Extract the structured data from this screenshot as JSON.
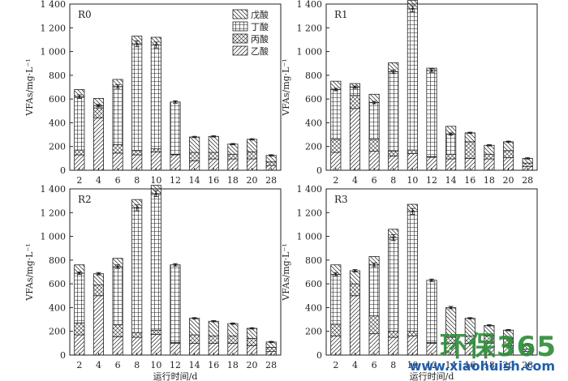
{
  "legend": {
    "items": [
      "戊酸",
      "丁酸",
      "丙酸",
      "乙酸"
    ]
  },
  "watermark": {
    "main": "环保365",
    "sub": "www.xiaohuish.com"
  },
  "colors": {
    "axis": "#222222",
    "bar_fill": "#ffffff",
    "bar_stroke": "#222222"
  },
  "chart_data": [
    {
      "type": "bar",
      "stacked": true,
      "label": "R0",
      "xlabel": "",
      "ylabel": "VFAs/mg·L⁻¹",
      "ylim": [
        0,
        1400
      ],
      "yticks": [
        "0",
        "200",
        "400",
        "600",
        "800",
        "1 000",
        "1 200",
        "1 400"
      ],
      "categories": [
        "2",
        "4",
        "6",
        "8",
        "10",
        "12",
        "14",
        "16",
        "18",
        "20",
        "28"
      ],
      "legend_position": "top-right",
      "series": [
        {
          "name": "乙酸",
          "pattern": "diag",
          "values": [
            130,
            440,
            145,
            130,
            155,
            130,
            80,
            95,
            95,
            95,
            40
          ]
        },
        {
          "name": "丙酸",
          "pattern": "cross",
          "values": [
            40,
            85,
            70,
            35,
            25,
            5,
            70,
            55,
            40,
            60,
            30
          ]
        },
        {
          "name": "丁酸",
          "pattern": "grid",
          "values": [
            450,
            20,
            490,
            900,
            875,
            440,
            0,
            0,
            0,
            0,
            0
          ]
        },
        {
          "name": "戊酸",
          "pattern": "back",
          "values": [
            60,
            60,
            60,
            65,
            65,
            0,
            130,
            135,
            85,
            105,
            55
          ]
        }
      ],
      "errors": [
        {
          "series": 2,
          "values": [
            15,
            10,
            15,
            25,
            25,
            10,
            0,
            0,
            0,
            0,
            0
          ]
        },
        {
          "series": 3,
          "values": [
            0,
            0,
            0,
            0,
            0,
            0,
            5,
            5,
            5,
            5,
            5
          ]
        }
      ]
    },
    {
      "type": "bar",
      "stacked": true,
      "label": "R1",
      "xlabel": "",
      "ylabel": "VFAs/mg·L⁻¹",
      "ylim": [
        0,
        1400
      ],
      "yticks": [
        "0",
        "200",
        "400",
        "600",
        "800",
        "1 000",
        "1 200",
        "1 400"
      ],
      "categories": [
        "2",
        "4",
        "6",
        "8",
        "10",
        "12",
        "14",
        "16",
        "18",
        "20",
        "28"
      ],
      "series": [
        {
          "name": "乙酸",
          "pattern": "diag",
          "values": [
            150,
            520,
            160,
            120,
            140,
            110,
            95,
            100,
            95,
            105,
            30
          ]
        },
        {
          "name": "丙酸",
          "pattern": "cross",
          "values": [
            110,
            110,
            100,
            40,
            30,
            5,
            40,
            140,
            40,
            60,
            30
          ]
        },
        {
          "name": "丁酸",
          "pattern": "grid",
          "values": [
            420,
            70,
            310,
            670,
            1190,
            725,
            170,
            0,
            0,
            0,
            0
          ]
        },
        {
          "name": "戊酸",
          "pattern": "back",
          "values": [
            70,
            30,
            70,
            75,
            70,
            20,
            65,
            75,
            75,
            75,
            40
          ]
        }
      ],
      "errors": [
        {
          "series": 2,
          "values": [
            10,
            10,
            10,
            15,
            25,
            15,
            10,
            0,
            0,
            0,
            0
          ]
        },
        {
          "series": 3,
          "values": [
            0,
            0,
            0,
            0,
            0,
            0,
            0,
            5,
            5,
            5,
            5
          ]
        }
      ]
    },
    {
      "type": "bar",
      "stacked": true,
      "label": "R2",
      "xlabel": "运行时间/d",
      "ylabel": "VFAs/mg·L⁻¹",
      "ylim": [
        0,
        1400
      ],
      "yticks": [
        "0",
        "200",
        "400",
        "600",
        "800",
        "1 000",
        "1 200",
        "1 400"
      ],
      "categories": [
        "2",
        "4",
        "6",
        "8",
        "10",
        "12",
        "14",
        "16",
        "18",
        "20",
        "28"
      ],
      "series": [
        {
          "name": "乙酸",
          "pattern": "diag",
          "values": [
            170,
            500,
            155,
            150,
            175,
            100,
            100,
            100,
            100,
            80,
            30
          ]
        },
        {
          "name": "丙酸",
          "pattern": "cross",
          "values": [
            100,
            90,
            100,
            40,
            35,
            5,
            70,
            60,
            60,
            60,
            35
          ]
        },
        {
          "name": "丁酸",
          "pattern": "grid",
          "values": [
            420,
            0,
            490,
            1050,
            1150,
            655,
            0,
            0,
            0,
            0,
            0
          ]
        },
        {
          "name": "戊酸",
          "pattern": "back",
          "values": [
            70,
            95,
            70,
            70,
            70,
            0,
            140,
            125,
            105,
            85,
            45
          ]
        }
      ],
      "errors": [
        {
          "series": 2,
          "values": [
            10,
            0,
            15,
            25,
            25,
            10,
            0,
            0,
            0,
            0,
            0
          ]
        },
        {
          "series": 3,
          "values": [
            0,
            10,
            0,
            0,
            0,
            0,
            5,
            5,
            5,
            5,
            5
          ]
        }
      ]
    },
    {
      "type": "bar",
      "stacked": true,
      "label": "R3",
      "xlabel": "运行时间/d",
      "ylabel": "VFAs/mg·L⁻¹",
      "ylim": [
        0,
        1400
      ],
      "yticks": [
        "0",
        "200",
        "400",
        "600",
        "800",
        "1 000",
        "1 200",
        "1 400"
      ],
      "categories": [
        "2",
        "4",
        "6",
        "8",
        "10",
        "12",
        "14",
        "16",
        "18",
        "20",
        "28"
      ],
      "series": [
        {
          "name": "乙酸",
          "pattern": "diag",
          "values": [
            160,
            500,
            180,
            150,
            160,
            100,
            100,
            100,
            100,
            80,
            30
          ]
        },
        {
          "name": "丙酸",
          "pattern": "cross",
          "values": [
            100,
            100,
            150,
            50,
            40,
            5,
            50,
            60,
            60,
            60,
            20
          ]
        },
        {
          "name": "丁酸",
          "pattern": "grid",
          "values": [
            420,
            0,
            430,
            790,
            1010,
            525,
            0,
            0,
            0,
            0,
            0
          ]
        },
        {
          "name": "戊酸",
          "pattern": "back",
          "values": [
            80,
            110,
            70,
            70,
            60,
            0,
            250,
            150,
            90,
            70,
            40
          ]
        }
      ],
      "errors": [
        {
          "series": 2,
          "values": [
            15,
            0,
            15,
            25,
            25,
            10,
            0,
            0,
            0,
            0,
            0
          ]
        },
        {
          "series": 3,
          "values": [
            0,
            10,
            0,
            0,
            0,
            0,
            10,
            5,
            5,
            5,
            5
          ]
        }
      ]
    }
  ]
}
